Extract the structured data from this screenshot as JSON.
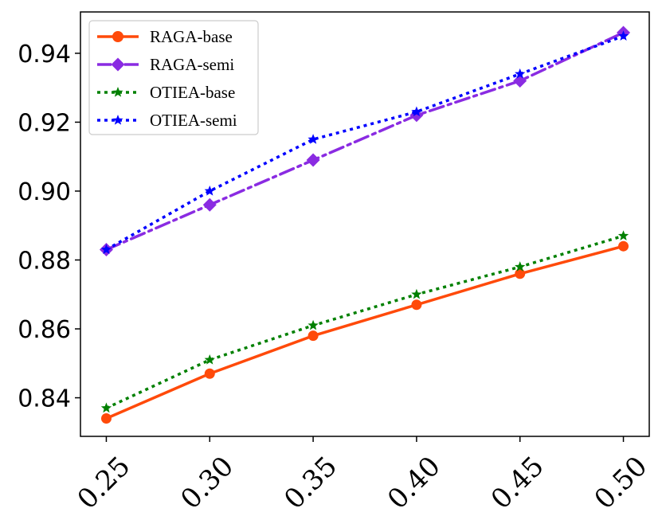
{
  "chart_data": {
    "type": "line",
    "title": "",
    "xlabel": "",
    "ylabel": "",
    "x": [
      0.25,
      0.3,
      0.35,
      0.4,
      0.45,
      0.5
    ],
    "xtick_labels": [
      "0.25",
      "0.30",
      "0.35",
      "0.40",
      "0.45",
      "0.50"
    ],
    "xlim": [
      0.2375,
      0.5125
    ],
    "ylim": [
      0.8288,
      0.952
    ],
    "yticks": [
      0.84,
      0.86,
      0.88,
      0.9,
      0.92,
      0.94
    ],
    "ytick_labels": [
      "0.84",
      "0.86",
      "0.88",
      "0.90",
      "0.92",
      "0.94"
    ],
    "grid": false,
    "legend_position": "top-left",
    "series": [
      {
        "name": "RAGA-base",
        "color": "#ff4a0a",
        "line_style": "solid",
        "marker": "circle",
        "values": [
          0.834,
          0.847,
          0.858,
          0.867,
          0.876,
          0.884
        ]
      },
      {
        "name": "RAGA-semi",
        "color": "#8a2be2",
        "line_style": "dashdot",
        "marker": "diamond",
        "values": [
          0.883,
          0.896,
          0.909,
          0.922,
          0.932,
          0.946
        ]
      },
      {
        "name": "OTIEA-base",
        "color": "#008000",
        "line_style": "dotted",
        "marker": "star",
        "values": [
          0.837,
          0.851,
          0.861,
          0.87,
          0.878,
          0.887
        ]
      },
      {
        "name": "OTIEA-semi",
        "color": "#0000ff",
        "line_style": "dotted",
        "marker": "star",
        "values": [
          0.883,
          0.9,
          0.915,
          0.923,
          0.934,
          0.945
        ]
      }
    ]
  }
}
